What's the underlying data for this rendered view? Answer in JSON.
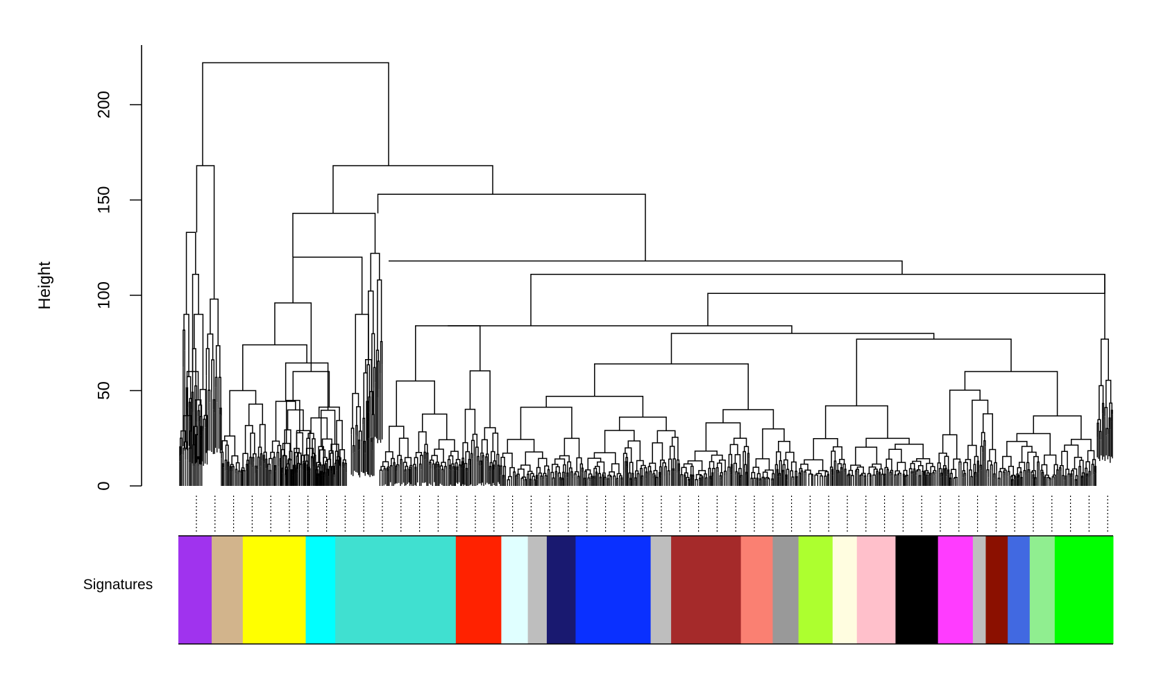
{
  "chart_data": {
    "type": "dendrogram",
    "title": "",
    "xlabel": "",
    "ylabel": "Height",
    "ylim": [
      0,
      222
    ],
    "y_ticks": [
      0,
      50,
      100,
      150,
      200
    ],
    "y_tick_labels": [
      "0",
      "50",
      "100",
      "150",
      "200"
    ],
    "color_bar_label": "Signatures",
    "major_merge_heights": [
      222,
      168,
      153,
      145,
      143,
      133,
      126,
      120,
      118,
      111,
      101,
      96,
      90,
      84,
      80,
      77,
      64,
      60,
      55,
      47,
      45,
      43,
      42
    ],
    "modules": [
      {
        "color": "#A033EE",
        "width": 44
      },
      {
        "color": "#D2B48C",
        "width": 41
      },
      {
        "color": "#FFFF00",
        "width": 83
      },
      {
        "color": "#00FFFF",
        "width": 39
      },
      {
        "color": "#40E0D0",
        "width": 159
      },
      {
        "color": "#FF2200",
        "width": 60
      },
      {
        "color": "#E0FFFF",
        "width": 35
      },
      {
        "color": "#BEBEBE",
        "width": 25
      },
      {
        "color": "#191970",
        "width": 38
      },
      {
        "color": "#0A30FF",
        "width": 99
      },
      {
        "color": "#BEBEBE",
        "width": 27
      },
      {
        "color": "#A52A2A",
        "width": 92
      },
      {
        "color": "#FA8072",
        "width": 42
      },
      {
        "color": "#999999",
        "width": 34
      },
      {
        "color": "#ADFF2F",
        "width": 45
      },
      {
        "color": "#FFFDE0",
        "width": 32
      },
      {
        "color": "#FFC0CB",
        "width": 51
      },
      {
        "color": "#000000",
        "width": 56
      },
      {
        "color": "#FF3CFF",
        "width": 46
      },
      {
        "color": "#BEBEBE",
        "width": 17
      },
      {
        "color": "#8B1000",
        "width": 29
      },
      {
        "color": "#4169E1",
        "width": 29
      },
      {
        "color": "#90EE90",
        "width": 33
      },
      {
        "color": "#00FF00",
        "width": 77
      }
    ],
    "colors": {
      "axis": "#000000",
      "tree": "#000000",
      "background": "#FFFFFF"
    }
  }
}
